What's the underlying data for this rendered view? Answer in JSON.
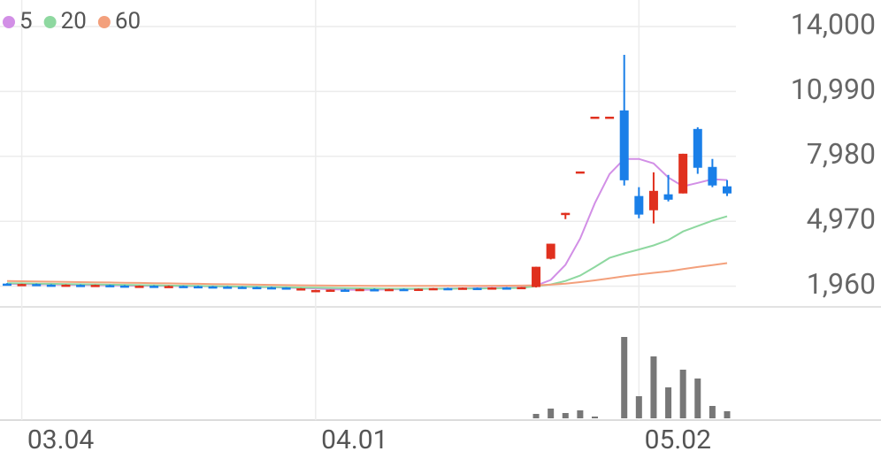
{
  "chart_data": {
    "type": "candlestick",
    "categories": [
      null,
      "03.04",
      null,
      null,
      null,
      null,
      null,
      null,
      null,
      null,
      null,
      null,
      null,
      null,
      null,
      null,
      null,
      null,
      null,
      null,
      null,
      "04.01",
      null,
      null,
      null,
      null,
      null,
      null,
      null,
      null,
      null,
      null,
      null,
      null,
      null,
      null,
      null,
      null,
      null,
      null,
      null,
      null,
      null,
      "05.02",
      null,
      null,
      null,
      null,
      null,
      null
    ],
    "open": [
      2080,
      2030,
      2060,
      2030,
      2000,
      2020,
      1990,
      2010,
      1990,
      1950,
      1980,
      1960,
      1970,
      1960,
      1950,
      1940,
      1930,
      1920,
      1910,
      1900,
      1830,
      1750,
      1780,
      1800,
      1790,
      1820,
      1800,
      1830,
      1820,
      1840,
      1870,
      1860,
      1880,
      1870,
      1900,
      1890,
      1920,
      3230,
      5360,
      7280,
      9820,
      9820,
      10110,
      6140,
      5480,
      6220,
      6260,
      9250,
      7490,
      6590
    ],
    "high": [
      2100,
      2070,
      2080,
      2050,
      2040,
      2040,
      2030,
      2030,
      2010,
      1990,
      2000,
      1990,
      1990,
      1980,
      1970,
      1960,
      1950,
      1940,
      1930,
      1910,
      1870,
      1790,
      1810,
      1830,
      1840,
      1850,
      1840,
      1850,
      1850,
      1880,
      1890,
      1900,
      1900,
      1910,
      1920,
      1930,
      2860,
      3930,
      5360,
      7280,
      9820,
      9820,
      12690,
      6550,
      7240,
      7120,
      8100,
      9330,
      7860,
      6880
    ],
    "low": [
      2030,
      2010,
      2020,
      1990,
      1990,
      1980,
      1980,
      1970,
      1940,
      1930,
      1950,
      1940,
      1950,
      1940,
      1930,
      1920,
      1910,
      1900,
      1890,
      1820,
      1810,
      1730,
      1760,
      1780,
      1770,
      1790,
      1780,
      1800,
      1800,
      1820,
      1840,
      1850,
      1860,
      1860,
      1880,
      1880,
      1900,
      3200,
      5070,
      7280,
      9820,
      9820,
      6630,
      5110,
      4870,
      5890,
      6260,
      7170,
      6550,
      6140
    ],
    "close": [
      2040,
      2060,
      2030,
      2000,
      2030,
      1990,
      2020,
      1980,
      1950,
      1980,
      1960,
      1970,
      1960,
      1950,
      1940,
      1930,
      1920,
      1910,
      1900,
      1830,
      1860,
      1780,
      1800,
      1790,
      1830,
      1800,
      1830,
      1820,
      1840,
      1870,
      1860,
      1890,
      1870,
      1900,
      1890,
      1920,
      2860,
      3930,
      5360,
      7280,
      9820,
      9820,
      6870,
      5280,
      6380,
      5970,
      8100,
      7450,
      6630,
      6260
    ],
    "up_color": "#e0301e",
    "down_color": "#1a7fe8",
    "series": [
      {
        "name": "5",
        "color": "#d28fe6",
        "values": [
          2070,
          2060,
          2050,
          2040,
          2030,
          2020,
          2010,
          2000,
          1990,
          1980,
          1970,
          1970,
          1960,
          1960,
          1950,
          1940,
          1930,
          1920,
          1910,
          1890,
          1870,
          1850,
          1820,
          1800,
          1790,
          1800,
          1810,
          1820,
          1830,
          1840,
          1850,
          1860,
          1870,
          1880,
          1890,
          1900,
          1990,
          2250,
          2950,
          4170,
          5810,
          7160,
          7860,
          7860,
          7650,
          7000,
          6590,
          6750,
          6920,
          6880
        ]
      },
      {
        "name": "20",
        "color": "#8ed8a0",
        "values": [
          2100,
          2090,
          2080,
          2070,
          2060,
          2050,
          2040,
          2030,
          2020,
          2010,
          2000,
          1990,
          1980,
          1970,
          1960,
          1950,
          1940,
          1930,
          1920,
          1910,
          1900,
          1890,
          1880,
          1870,
          1860,
          1850,
          1840,
          1840,
          1840,
          1840,
          1840,
          1850,
          1850,
          1860,
          1870,
          1880,
          1960,
          2040,
          2200,
          2450,
          2850,
          3270,
          3480,
          3660,
          3850,
          4100,
          4500,
          4750,
          5000,
          5200
        ]
      },
      {
        "name": "60",
        "color": "#f3a07c",
        "values": [
          2200,
          2190,
          2180,
          2170,
          2160,
          2150,
          2140,
          2130,
          2120,
          2110,
          2100,
          2090,
          2080,
          2070,
          2060,
          2050,
          2040,
          2030,
          2020,
          2010,
          2000,
          1995,
          1990,
          1985,
          1980,
          1975,
          1970,
          1970,
          1970,
          1970,
          1970,
          1970,
          1975,
          1980,
          1985,
          1990,
          2000,
          2030,
          2080,
          2150,
          2230,
          2320,
          2420,
          2500,
          2580,
          2650,
          2750,
          2850,
          2940,
          3030
        ]
      }
    ],
    "volume": {
      "color": "#777777",
      "ylim": [
        0,
        100
      ],
      "values": [
        0,
        0,
        0,
        0,
        0,
        0,
        0,
        0,
        0,
        0,
        0,
        0,
        0,
        0,
        0,
        0,
        0,
        0,
        0,
        0,
        0,
        0,
        0,
        0,
        0,
        0,
        0,
        0,
        0,
        0,
        0,
        0,
        0,
        0,
        0,
        0,
        5,
        11,
        6,
        9,
        2,
        0,
        92,
        25,
        70,
        35,
        55,
        45,
        14,
        8
      ]
    },
    "ylim": [
      1000,
      15230
    ],
    "yticks": [
      {
        "value": 1960,
        "label": "1,960"
      },
      {
        "value": 4970,
        "label": "4,970"
      },
      {
        "value": 7980,
        "label": "7,980"
      },
      {
        "value": 10990,
        "label": "10,990"
      },
      {
        "value": 14000,
        "label": "14,000"
      }
    ],
    "grid": true
  }
}
